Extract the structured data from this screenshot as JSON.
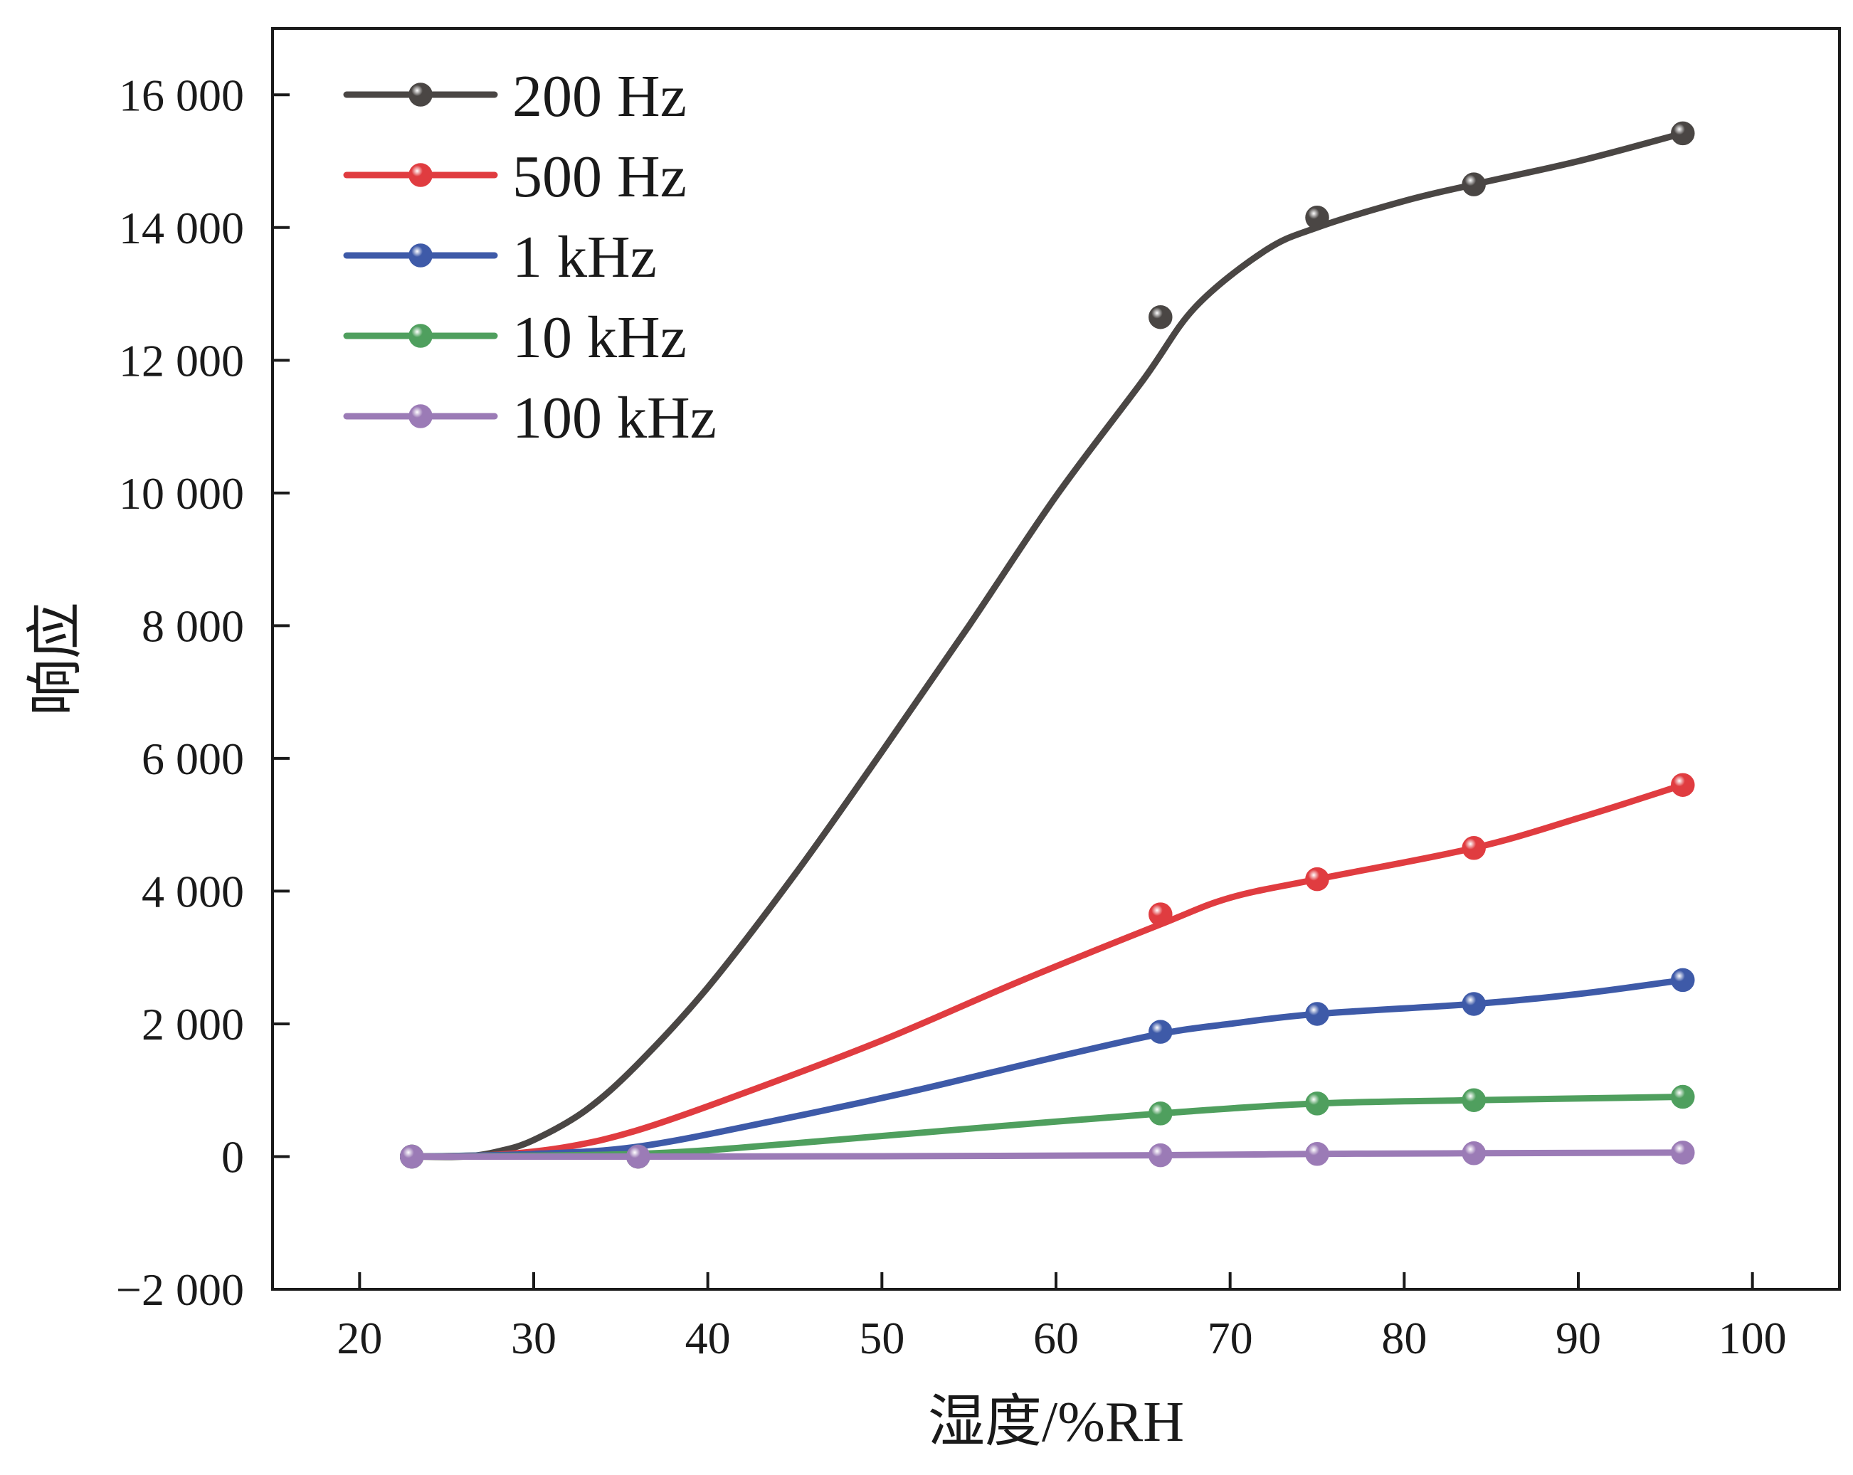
{
  "chart_data": {
    "type": "line",
    "title": "",
    "xlabel": "湿度/%RH",
    "ylabel": "响应",
    "xlim": [
      15,
      105
    ],
    "ylim": [
      -2000,
      17000
    ],
    "xticks": [
      20,
      30,
      40,
      50,
      60,
      70,
      80,
      90,
      100
    ],
    "yticks": [
      -2000,
      0,
      2000,
      4000,
      6000,
      8000,
      10000,
      12000,
      14000,
      16000
    ],
    "xtick_labels": [
      "20",
      "30",
      "40",
      "50",
      "60",
      "70",
      "80",
      "90",
      "100"
    ],
    "ytick_labels": [
      "−2 000",
      "0",
      "2 000",
      "4 000",
      "6 000",
      "8 000",
      "10 000",
      "12 000",
      "14 000",
      "16 000"
    ],
    "legend_position": "top-left",
    "series": [
      {
        "name": "200 Hz",
        "color": "#4a4644",
        "points": [
          [
            23,
            0
          ],
          [
            36,
            0
          ],
          [
            66,
            12650
          ],
          [
            75,
            14150
          ],
          [
            84,
            14650
          ],
          [
            96,
            15420
          ]
        ],
        "curve": [
          [
            23,
            0
          ],
          [
            26,
            0
          ],
          [
            28,
            80
          ],
          [
            30,
            250
          ],
          [
            33,
            700
          ],
          [
            36,
            1400
          ],
          [
            40,
            2550
          ],
          [
            45,
            4250
          ],
          [
            50,
            6100
          ],
          [
            55,
            8000
          ],
          [
            60,
            9950
          ],
          [
            65,
            11700
          ],
          [
            68,
            12800
          ],
          [
            72,
            13650
          ],
          [
            75,
            14000
          ],
          [
            80,
            14400
          ],
          [
            84,
            14650
          ],
          [
            90,
            15000
          ],
          [
            96,
            15420
          ]
        ]
      },
      {
        "name": "500 Hz",
        "color": "#e03c40",
        "points": [
          [
            23,
            0
          ],
          [
            36,
            0
          ],
          [
            66,
            3650
          ],
          [
            75,
            4180
          ],
          [
            84,
            4650
          ],
          [
            96,
            5600
          ]
        ],
        "curve": [
          [
            23,
            0
          ],
          [
            28,
            30
          ],
          [
            32,
            150
          ],
          [
            36,
            400
          ],
          [
            42,
            950
          ],
          [
            50,
            1750
          ],
          [
            58,
            2650
          ],
          [
            66,
            3500
          ],
          [
            70,
            3900
          ],
          [
            75,
            4180
          ],
          [
            84,
            4650
          ],
          [
            90,
            5100
          ],
          [
            96,
            5600
          ]
        ]
      },
      {
        "name": "1 kHz",
        "color": "#3e5aa8",
        "points": [
          [
            23,
            0
          ],
          [
            36,
            0
          ],
          [
            66,
            1880
          ],
          [
            75,
            2150
          ],
          [
            84,
            2300
          ],
          [
            96,
            2660
          ]
        ],
        "curve": [
          [
            23,
            0
          ],
          [
            30,
            40
          ],
          [
            36,
            150
          ],
          [
            44,
            550
          ],
          [
            52,
            1000
          ],
          [
            60,
            1500
          ],
          [
            66,
            1850
          ],
          [
            70,
            2000
          ],
          [
            75,
            2150
          ],
          [
            84,
            2300
          ],
          [
            90,
            2450
          ],
          [
            96,
            2660
          ]
        ]
      },
      {
        "name": "10 kHz",
        "color": "#4f9f5e",
        "points": [
          [
            23,
            0
          ],
          [
            36,
            0
          ],
          [
            66,
            650
          ],
          [
            75,
            800
          ],
          [
            84,
            850
          ],
          [
            96,
            900
          ]
        ],
        "curve": [
          [
            23,
            0
          ],
          [
            36,
            40
          ],
          [
            45,
            200
          ],
          [
            55,
            420
          ],
          [
            66,
            650
          ],
          [
            75,
            800
          ],
          [
            84,
            850
          ],
          [
            96,
            900
          ]
        ]
      },
      {
        "name": "100 kHz",
        "color": "#9b7bb6",
        "points": [
          [
            23,
            0
          ],
          [
            36,
            0
          ],
          [
            66,
            20
          ],
          [
            75,
            40
          ],
          [
            84,
            50
          ],
          [
            96,
            60
          ]
        ],
        "curve": [
          [
            23,
            0
          ],
          [
            36,
            0
          ],
          [
            50,
            5
          ],
          [
            66,
            20
          ],
          [
            75,
            40
          ],
          [
            84,
            50
          ],
          [
            96,
            60
          ]
        ]
      }
    ]
  }
}
